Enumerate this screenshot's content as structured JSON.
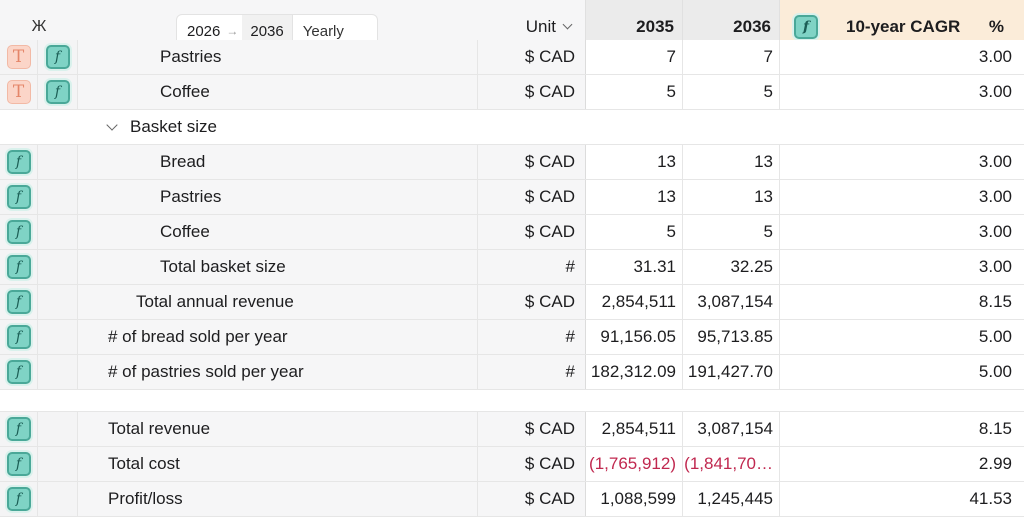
{
  "header": {
    "corner_glyph": "Ж",
    "period_from": "2026",
    "period_arrow": "→",
    "period_to": "2036",
    "frequency": "Yearly",
    "unit_label": "Unit",
    "year_1": "2035",
    "year_2": "2036",
    "cagr_label": "10-year CAGR",
    "cagr_unit": "%"
  },
  "rows": [
    {
      "id": "pastries-top",
      "icons": [
        "text",
        "fx"
      ],
      "label": "Pastries",
      "unit": "$ CAD",
      "y1": "7",
      "y2": "7",
      "cagr": "3.00"
    },
    {
      "id": "coffee-top",
      "icons": [
        "text",
        "fx"
      ],
      "label": "Coffee",
      "unit": "$ CAD",
      "y1": "5",
      "y2": "5",
      "cagr": "3.00"
    },
    {
      "id": "basket-group",
      "label": "Basket size"
    },
    {
      "id": "bread",
      "icons": [
        "fx"
      ],
      "label": "Bread",
      "unit": "$ CAD",
      "y1": "13",
      "y2": "13",
      "cagr": "3.00"
    },
    {
      "id": "pastries",
      "icons": [
        "fx"
      ],
      "label": "Pastries",
      "unit": "$ CAD",
      "y1": "13",
      "y2": "13",
      "cagr": "3.00"
    },
    {
      "id": "coffee",
      "icons": [
        "fx"
      ],
      "label": "Coffee",
      "unit": "$ CAD",
      "y1": "5",
      "y2": "5",
      "cagr": "3.00"
    },
    {
      "id": "total-basket",
      "icons": [
        "fx"
      ],
      "label": "Total basket size",
      "unit": "#",
      "y1": "31.31",
      "y2": "32.25",
      "cagr": "3.00"
    },
    {
      "id": "total-annual-revenue",
      "icons": [
        "fx"
      ],
      "label": "Total annual revenue",
      "unit": "$ CAD",
      "y1": "2,854,511",
      "y2": "3,087,154",
      "cagr": "8.15"
    },
    {
      "id": "bread-sold",
      "icons": [
        "fx"
      ],
      "label": "# of bread sold per year",
      "unit": "#",
      "y1": "91,156.05",
      "y2": "95,713.85",
      "cagr": "5.00"
    },
    {
      "id": "pastries-sold",
      "icons": [
        "fx"
      ],
      "label": "# of pastries sold per year",
      "unit": "#",
      "y1": "182,312.09",
      "y2": "191,427.70",
      "cagr": "5.00"
    },
    {
      "id": "total-revenue",
      "icons": [
        "fx"
      ],
      "label": "Total revenue",
      "unit": "$ CAD",
      "y1": "2,854,511",
      "y2": "3,087,154",
      "cagr": "8.15"
    },
    {
      "id": "total-cost",
      "icons": [
        "fx"
      ],
      "label": "Total cost",
      "unit": "$ CAD",
      "y1": "(1,765,912)",
      "y2": "(1,841,70…",
      "cagr": "2.99"
    },
    {
      "id": "profit-loss",
      "icons": [
        "fx"
      ],
      "label": "Profit/loss",
      "unit": "$ CAD",
      "y1": "1,088,599",
      "y2": "1,245,445",
      "cagr": "41.53"
    }
  ],
  "icon_glyphs": {
    "fx": "f",
    "text": "T"
  },
  "colors": {
    "negative": "#c0284f",
    "formula_badge": "#7fd3c5",
    "text_badge": "#fbd5c8",
    "cagr_header": "#fbecd9"
  }
}
